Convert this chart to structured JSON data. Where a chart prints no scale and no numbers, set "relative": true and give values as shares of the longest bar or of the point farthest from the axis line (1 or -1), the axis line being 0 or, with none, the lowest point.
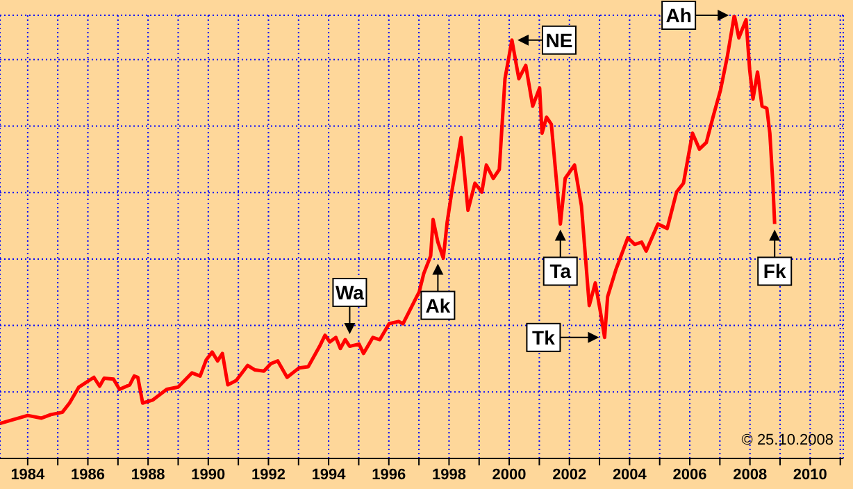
{
  "chart_data": {
    "type": "line",
    "relative": true,
    "grid": true,
    "x": [
      1983.08,
      1984.0,
      1984.46,
      1984.77,
      1985.15,
      1985.39,
      1985.7,
      1985.93,
      1986.2,
      1986.39,
      1986.54,
      1986.85,
      1987.05,
      1987.39,
      1987.54,
      1987.66,
      1987.82,
      1988.16,
      1988.62,
      1989.0,
      1989.46,
      1989.73,
      1989.93,
      1990.13,
      1990.31,
      1990.47,
      1990.65,
      1990.93,
      1991.31,
      1991.54,
      1991.85,
      1992.08,
      1992.31,
      1992.62,
      1993.01,
      1993.32,
      1993.7,
      1993.88,
      1994.04,
      1994.24,
      1994.39,
      1994.55,
      1994.7,
      1995.01,
      1995.16,
      1995.47,
      1995.7,
      1996.01,
      1996.32,
      1996.47,
      1996.85,
      1997.01,
      1997.16,
      1997.39,
      1997.47,
      1997.63,
      1997.81,
      1997.94,
      1998.09,
      1998.4,
      1998.63,
      1998.86,
      1999.09,
      1999.24,
      1999.47,
      1999.67,
      1999.86,
      2000.09,
      2000.32,
      2000.55,
      2000.78,
      2001.01,
      2001.09,
      2001.24,
      2001.4,
      2001.7,
      2001.86,
      2002.17,
      2002.4,
      2002.66,
      2002.86,
      2003.02,
      2003.17,
      2003.27,
      2003.55,
      2003.94,
      2004.17,
      2004.4,
      2004.55,
      2004.94,
      2005.25,
      2005.56,
      2005.79,
      2006.09,
      2006.32,
      2006.55,
      2006.79,
      2007.02,
      2007.25,
      2007.48,
      2007.63,
      2007.87,
      2007.99,
      2008.1,
      2008.25,
      2008.4,
      2008.56,
      2008.66,
      2008.76,
      2008.82
    ],
    "series": [
      {
        "color": "#ff0000",
        "values": [
          0.079,
          0.097,
          0.091,
          0.099,
          0.104,
          0.125,
          0.161,
          0.171,
          0.183,
          0.163,
          0.181,
          0.179,
          0.156,
          0.166,
          0.186,
          0.183,
          0.125,
          0.132,
          0.156,
          0.161,
          0.193,
          0.186,
          0.222,
          0.24,
          0.22,
          0.237,
          0.166,
          0.176,
          0.21,
          0.2,
          0.197,
          0.214,
          0.22,
          0.183,
          0.204,
          0.207,
          0.253,
          0.278,
          0.263,
          0.273,
          0.248,
          0.268,
          0.253,
          0.258,
          0.237,
          0.273,
          0.268,
          0.304,
          0.309,
          0.304,
          0.355,
          0.376,
          0.417,
          0.457,
          0.539,
          0.488,
          0.452,
          0.534,
          0.601,
          0.724,
          0.56,
          0.621,
          0.601,
          0.662,
          0.632,
          0.652,
          0.857,
          0.944,
          0.857,
          0.887,
          0.795,
          0.836,
          0.734,
          0.77,
          0.754,
          0.529,
          0.632,
          0.662,
          0.57,
          0.345,
          0.396,
          0.335,
          0.273,
          0.365,
          0.427,
          0.498,
          0.483,
          0.488,
          0.468,
          0.529,
          0.519,
          0.601,
          0.621,
          0.734,
          0.698,
          0.713,
          0.775,
          0.831,
          0.908,
          1.0,
          0.949,
          0.99,
          0.877,
          0.811,
          0.872,
          0.795,
          0.79,
          0.734,
          0.621,
          0.529
        ]
      }
    ],
    "xlim": [
      1983.08,
      2011.1
    ],
    "xticks": [
      1984,
      {
        "value": 1985,
        "label": null
      },
      1986,
      {
        "value": 1987,
        "label": null
      },
      1988,
      {
        "value": 1989,
        "label": null
      },
      1990,
      {
        "value": 1991,
        "label": null
      },
      1992,
      {
        "value": 1993,
        "label": null
      },
      1994,
      {
        "value": 1995,
        "label": null
      },
      1996,
      {
        "value": 1997,
        "label": null
      },
      1998,
      {
        "value": 1999,
        "label": null
      },
      2000,
      {
        "value": 2001,
        "label": null
      },
      2002,
      {
        "value": 2003,
        "label": null
      },
      2004,
      {
        "value": 2005,
        "label": null
      },
      2006,
      {
        "value": 2007,
        "label": null
      },
      2008,
      {
        "value": 2009,
        "label": null
      },
      2010,
      {
        "value": 2011,
        "label": null
      }
    ],
    "annotations": [
      {
        "text": "Wa",
        "x": 1994.7,
        "y": 0.268
      },
      {
        "text": "Ak",
        "x": 1997.63,
        "y": 0.452
      },
      {
        "text": "NE",
        "x": 2000.09,
        "y": 0.944
      },
      {
        "text": "Ta",
        "x": 2001.7,
        "y": 0.529
      },
      {
        "text": "Tk",
        "x": 2003.17,
        "y": 0.273
      },
      {
        "text": "Ah",
        "x": 2007.48,
        "y": 1.0
      },
      {
        "text": "Fk",
        "x": 2008.82,
        "y": 0.529
      },
      "© 25.10.2008"
    ]
  }
}
